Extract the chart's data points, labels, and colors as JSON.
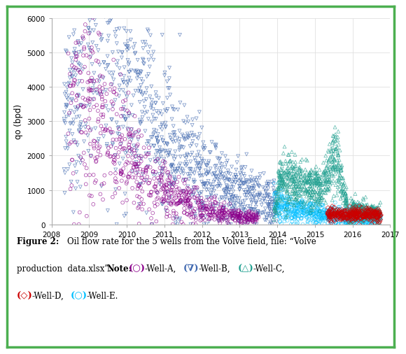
{
  "title": "",
  "xlabel": "",
  "ylabel": "qo (bpd)",
  "xlim_years": [
    2008,
    2017
  ],
  "ylim": [
    0,
    6000
  ],
  "yticks": [
    0,
    1000,
    2000,
    3000,
    4000,
    5000,
    6000
  ],
  "xticks_years": [
    2008,
    2009,
    2010,
    2011,
    2012,
    2013,
    2014,
    2015,
    2016,
    2017
  ],
  "well_colors": {
    "A": "#8B008B",
    "B": "#4169B0",
    "C": "#20A090",
    "D": "#CC0000",
    "E": "#00BFFF"
  },
  "well_markers": {
    "A": "o",
    "B": "v",
    "C": "^",
    "D": "D",
    "E": "o"
  },
  "fig_bg": "#FFFFFF",
  "plot_bg": "#FFFFFF",
  "border_color": "#4CAF50",
  "grid_color": "#E0E0E0",
  "marker_size": 3.5,
  "marker_lw": 0.5
}
